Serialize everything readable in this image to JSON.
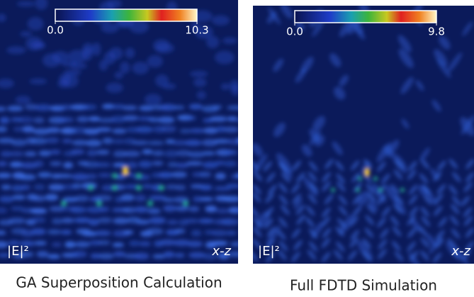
{
  "panels": [
    {
      "caption": "GA Superposition Calculation",
      "corner_label": "|E|²",
      "plane_label": "x-z",
      "colorbar": {
        "clim": [
          0,
          10.3
        ],
        "ticks": [
          {
            "value": 0,
            "label": "0.0"
          },
          10.3
        ]
      }
    },
    {
      "caption": "Full FDTD Simulation",
      "corner_label": "|E|²",
      "plane_label": "x-z",
      "colorbar": {
        "clim": [
          0,
          9.8
        ],
        "ticks": [
          {
            "value": 0,
            "label": "0.0"
          },
          9.8
        ]
      }
    }
  ]
}
